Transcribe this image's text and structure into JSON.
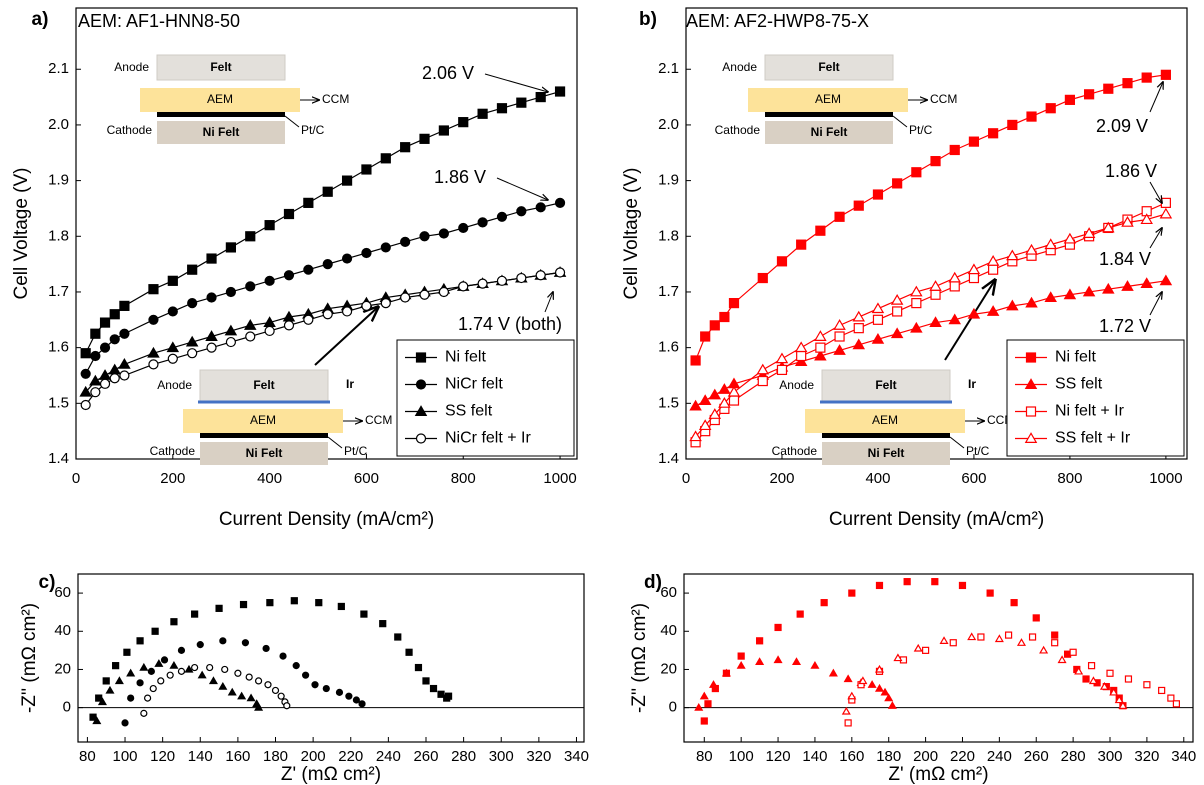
{
  "chart_data": [
    {
      "type": "line",
      "letter": "a)",
      "title": "AEM: AF1-HNN8-50",
      "x_label": "Current Density (mA/cm²)",
      "y_label": "Cell Voltage (V)",
      "x": [
        20,
        40,
        60,
        80,
        100,
        160,
        200,
        240,
        280,
        320,
        360,
        400,
        440,
        480,
        520,
        560,
        600,
        640,
        680,
        720,
        760,
        800,
        840,
        880,
        920,
        960,
        1000
      ],
      "xlim": [
        0,
        1035
      ],
      "ylim": [
        1.4,
        2.21
      ],
      "xticks": [
        0,
        200,
        400,
        600,
        800,
        1000
      ],
      "yticks": [
        1.4,
        1.5,
        1.6,
        1.7,
        1.8,
        1.9,
        {
          "value": 2,
          "label": "2.0"
        },
        2.1
      ],
      "legend": "lower right",
      "series": [
        {
          "name": "Ni felt",
          "color": "#000000",
          "marker": "square",
          "filled": true,
          "values": [
            1.59,
            1.625,
            1.645,
            1.66,
            1.675,
            1.705,
            1.72,
            1.74,
            1.76,
            1.78,
            1.8,
            1.82,
            1.84,
            1.86,
            1.88,
            1.9,
            1.92,
            1.94,
            1.96,
            1.975,
            1.99,
            2.005,
            2.02,
            2.03,
            2.04,
            2.05,
            2.06
          ]
        },
        {
          "name": "NiCr felt",
          "color": "#000000",
          "marker": "circle",
          "filled": true,
          "values": [
            1.553,
            1.585,
            1.6,
            1.615,
            1.625,
            1.65,
            1.665,
            1.68,
            1.69,
            1.7,
            1.71,
            1.72,
            1.73,
            1.74,
            1.75,
            1.76,
            1.77,
            1.78,
            1.79,
            1.8,
            1.805,
            1.815,
            1.825,
            1.835,
            1.845,
            1.852,
            1.86
          ]
        },
        {
          "name": "SS felt",
          "color": "#000000",
          "marker": "triangle",
          "filled": true,
          "values": [
            1.52,
            1.54,
            1.55,
            1.56,
            1.57,
            1.59,
            1.6,
            1.61,
            1.62,
            1.63,
            1.64,
            1.645,
            1.655,
            1.66,
            1.67,
            1.675,
            1.68,
            1.69,
            1.695,
            1.7,
            1.705,
            1.71,
            1.715,
            1.72,
            1.725,
            1.73,
            1.735
          ]
        },
        {
          "name": "NiCr felt + Ir",
          "color": "#000000",
          "marker": "circle",
          "filled": false,
          "values": [
            1.497,
            1.52,
            1.535,
            1.545,
            1.55,
            1.57,
            1.58,
            1.59,
            1.6,
            1.61,
            1.62,
            1.63,
            1.64,
            1.65,
            1.66,
            1.665,
            1.675,
            1.68,
            1.69,
            1.695,
            1.7,
            1.71,
            1.715,
            1.72,
            1.725,
            1.73,
            1.735
          ]
        }
      ],
      "annotations": [
        "2.06 V",
        "1.86 V",
        "1.74 V (both)"
      ],
      "insets": [
        {
          "anode": "Anode",
          "anode_layer": "Felt",
          "membrane": "AEM",
          "ccm": "CCM",
          "cathode": "Cathode",
          "cathode_layer": "Ni Felt",
          "catalyst": "Pt/C"
        },
        {
          "anode": "Anode",
          "anode_layer": "Felt",
          "coating": "Ir",
          "membrane": "AEM",
          "ccm": "CCM",
          "cathode": "Cathode",
          "cathode_layer": "Ni Felt",
          "catalyst": "Pt/C"
        }
      ]
    },
    {
      "type": "line",
      "letter": "b)",
      "title": "AEM: AF2-HWP8-75-X",
      "x_label": "Current Density (mA/cm²)",
      "y_label": "Cell Voltage (V)",
      "x": [
        20,
        40,
        60,
        80,
        100,
        160,
        200,
        240,
        280,
        320,
        360,
        400,
        440,
        480,
        520,
        560,
        600,
        640,
        680,
        720,
        760,
        800,
        840,
        880,
        920,
        960,
        1000
      ],
      "xlim": [
        0,
        1044
      ],
      "ylim": [
        1.4,
        2.21
      ],
      "xticks": [
        0,
        200,
        400,
        600,
        800,
        1000
      ],
      "yticks": [
        1.4,
        1.5,
        1.6,
        1.7,
        1.8,
        1.9,
        {
          "value": 2,
          "label": "2.0"
        },
        2.1
      ],
      "legend": "lower right",
      "series": [
        {
          "name": "Ni felt",
          "color": "#ff0000",
          "marker": "square",
          "filled": true,
          "values": [
            1.577,
            1.62,
            1.64,
            1.655,
            1.68,
            1.725,
            1.755,
            1.785,
            1.81,
            1.835,
            1.855,
            1.875,
            1.895,
            1.915,
            1.935,
            1.955,
            1.97,
            1.985,
            2.0,
            2.015,
            2.03,
            2.045,
            2.055,
            2.065,
            2.075,
            2.085,
            2.09
          ]
        },
        {
          "name": "SS felt",
          "color": "#ff0000",
          "marker": "triangle",
          "filled": true,
          "values": [
            1.495,
            1.505,
            1.515,
            1.525,
            1.535,
            1.55,
            1.565,
            1.575,
            1.585,
            1.595,
            1.605,
            1.615,
            1.625,
            1.635,
            1.645,
            1.65,
            1.66,
            1.665,
            1.675,
            1.68,
            1.69,
            1.695,
            1.7,
            1.705,
            1.71,
            1.715,
            1.72
          ]
        },
        {
          "name": "Ni felt + Ir",
          "color": "#ff0000",
          "marker": "square",
          "filled": false,
          "values": [
            1.43,
            1.45,
            1.47,
            1.49,
            1.505,
            1.54,
            1.56,
            1.585,
            1.6,
            1.62,
            1.635,
            1.65,
            1.665,
            1.68,
            1.695,
            1.71,
            1.725,
            1.74,
            1.755,
            1.765,
            1.775,
            1.785,
            1.8,
            1.815,
            1.83,
            1.845,
            1.86
          ]
        },
        {
          "name": "SS felt + Ir",
          "color": "#ff0000",
          "marker": "triangle",
          "filled": false,
          "values": [
            1.44,
            1.46,
            1.48,
            1.5,
            1.52,
            1.56,
            1.58,
            1.6,
            1.62,
            1.64,
            1.655,
            1.67,
            1.685,
            1.7,
            1.71,
            1.725,
            1.74,
            1.755,
            1.765,
            1.775,
            1.785,
            1.795,
            1.805,
            1.815,
            1.825,
            1.83,
            1.84
          ]
        }
      ],
      "annotations": [
        "2.09 V",
        "1.86 V",
        "1.84 V",
        "1.72 V"
      ],
      "insets": [
        {
          "anode": "Anode",
          "anode_layer": "Felt",
          "membrane": "AEM",
          "ccm": "CCM",
          "cathode": "Cathode",
          "cathode_layer": "Ni Felt",
          "catalyst": "Pt/C"
        },
        {
          "anode": "Anode",
          "anode_layer": "Felt",
          "coating": "Ir",
          "membrane": "AEM",
          "ccm": "CCM",
          "cathode": "Cathode",
          "cathode_layer": "Ni Felt",
          "catalyst": "Pt/C"
        }
      ]
    },
    {
      "type": "scatter",
      "letter": "c)",
      "x_label": "Z' (mΩ cm²)",
      "y_label": "-Z'' (mΩ cm²)",
      "xlim": [
        75,
        344
      ],
      "ylim": [
        -18,
        70
      ],
      "xticks": [
        80,
        100,
        120,
        140,
        160,
        180,
        200,
        220,
        240,
        260,
        280,
        300,
        320,
        340
      ],
      "yticks": [
        0,
        20,
        40,
        60
      ],
      "zero_line": true,
      "series": [
        {
          "color": "#000000",
          "marker": "square",
          "filled": true,
          "x": [
            83,
            86,
            90,
            95,
            101,
            108,
            116,
            126,
            137,
            150,
            163,
            177,
            190,
            203,
            215,
            227,
            237,
            245,
            251,
            256,
            260,
            264,
            268,
            271,
            272
          ],
          "values": [
            -5,
            5,
            14,
            22,
            29,
            35,
            40,
            45,
            49,
            52,
            54,
            55,
            56,
            55,
            53,
            49,
            44,
            37,
            29,
            21,
            14,
            10,
            7,
            5,
            6
          ]
        },
        {
          "color": "#000000",
          "marker": "circle",
          "filled": true,
          "x": [
            100,
            103,
            108,
            114,
            121,
            130,
            140,
            152,
            164,
            175,
            184,
            191,
            196,
            201,
            207,
            214,
            219,
            223,
            226
          ],
          "values": [
            -8,
            5,
            13,
            19,
            25,
            30,
            33,
            35,
            34,
            31,
            27,
            22,
            17,
            12,
            10,
            8,
            6,
            4,
            2
          ]
        },
        {
          "color": "#000000",
          "marker": "triangle",
          "filled": true,
          "x": [
            85,
            88,
            92,
            97,
            103,
            110,
            118,
            126,
            134,
            141,
            147,
            152,
            157,
            162,
            167,
            170,
            171
          ],
          "values": [
            -7,
            3,
            9,
            14,
            18,
            21,
            23,
            22,
            20,
            17,
            14,
            11,
            8,
            6,
            5,
            2,
            0
          ]
        },
        {
          "color": "#000000",
          "marker": "circle",
          "filled": false,
          "x": [
            110,
            112,
            115,
            119,
            124,
            130,
            137,
            145,
            153,
            160,
            166,
            171,
            176,
            180,
            183,
            185,
            186
          ],
          "values": [
            -3,
            5,
            10,
            14,
            17,
            19,
            21,
            21,
            20,
            18,
            16,
            14,
            12,
            9,
            6,
            3,
            1
          ]
        }
      ]
    },
    {
      "type": "scatter",
      "letter": "d)",
      "x_label": "Z' (mΩ cm²)",
      "y_label": "-Z'' (mΩ cm²)",
      "xlim": [
        69,
        345
      ],
      "ylim": [
        -18,
        70
      ],
      "xticks": [
        80,
        100,
        120,
        140,
        160,
        180,
        200,
        220,
        240,
        260,
        280,
        300,
        320,
        340
      ],
      "yticks": [
        0,
        20,
        40,
        60
      ],
      "zero_line": true,
      "series": [
        {
          "color": "#ff0000",
          "marker": "square",
          "filled": true,
          "x": [
            80,
            82,
            86,
            92,
            100,
            110,
            120,
            132,
            145,
            160,
            175,
            190,
            205,
            220,
            235,
            248,
            260,
            270,
            277,
            282,
            287,
            293,
            298,
            302,
            305,
            307
          ],
          "values": [
            -7,
            2,
            10,
            18,
            27,
            35,
            42,
            49,
            55,
            60,
            64,
            66,
            66,
            64,
            60,
            55,
            47,
            38,
            28,
            20,
            15,
            13,
            11,
            9,
            5,
            1
          ]
        },
        {
          "color": "#ff0000",
          "marker": "triangle",
          "filled": true,
          "x": [
            77,
            80,
            85,
            92,
            100,
            110,
            120,
            130,
            140,
            150,
            158,
            165,
            171,
            175,
            178,
            180,
            182
          ],
          "values": [
            0,
            6,
            12,
            18,
            22,
            24,
            25,
            24,
            22,
            18,
            15,
            13,
            12,
            10,
            8,
            5,
            1
          ]
        },
        {
          "color": "#ff0000",
          "marker": "square",
          "filled": false,
          "x": [
            158,
            160,
            165,
            175,
            188,
            200,
            215,
            230,
            245,
            258,
            270,
            280,
            290,
            300,
            310,
            320,
            328,
            333,
            336
          ],
          "values": [
            -8,
            4,
            12,
            19,
            25,
            30,
            34,
            37,
            38,
            37,
            34,
            29,
            22,
            18,
            15,
            12,
            9,
            5,
            2
          ]
        },
        {
          "color": "#ff0000",
          "marker": "triangle",
          "filled": false,
          "x": [
            157,
            160,
            166,
            175,
            185,
            196,
            210,
            225,
            240,
            252,
            264,
            274,
            283,
            291,
            297,
            302,
            305,
            307
          ],
          "values": [
            -2,
            6,
            14,
            20,
            26,
            31,
            35,
            37,
            36,
            34,
            30,
            25,
            19,
            14,
            11,
            8,
            4,
            1
          ]
        }
      ]
    }
  ]
}
